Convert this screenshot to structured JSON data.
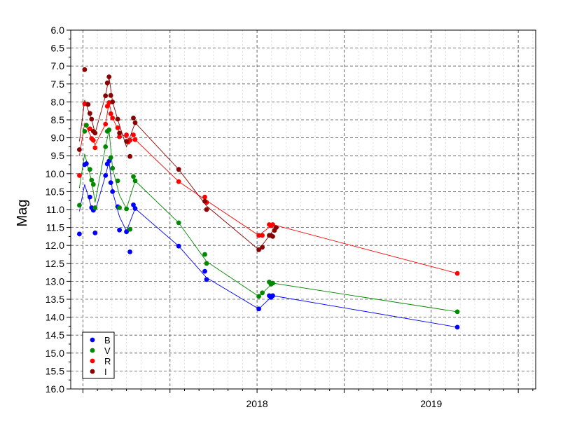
{
  "chart_data": {
    "type": "scatter",
    "ylabel": "Mag",
    "xlabel": "",
    "ylim": [
      6.0,
      16.0
    ],
    "y_inverted": true,
    "y_ticks": [
      "6.0",
      "6.5",
      "7.0",
      "7.5",
      "8.0",
      "8.5",
      "9.0",
      "9.5",
      "10.0",
      "10.5",
      "11.0",
      "11.5",
      "12.0",
      "12.5",
      "13.0",
      "13.5",
      "14.0",
      "14.5",
      "15.0",
      "15.5",
      "16.0"
    ],
    "xlim": [
      2016.93,
      2019.6
    ],
    "x_major_ticks": [
      2017.5,
      2018.0,
      2018.5,
      2019.0,
      2019.5
    ],
    "x_tick_labels": [
      {
        "x": 2018.0,
        "label": "2018"
      },
      {
        "x": 2019.0,
        "label": "2019"
      }
    ],
    "grid": true,
    "legend_position": "bottom-left",
    "series": [
      {
        "name": "B",
        "color": "#0000ff",
        "points": [
          [
            2016.98,
            11.68
          ],
          [
            2017.01,
            9.75
          ],
          [
            2017.02,
            9.72
          ],
          [
            2017.04,
            10.65
          ],
          [
            2017.05,
            10.95
          ],
          [
            2017.06,
            11.02
          ],
          [
            2017.07,
            11.65
          ],
          [
            2017.13,
            10.05
          ],
          [
            2017.14,
            9.73
          ],
          [
            2017.15,
            9.65
          ],
          [
            2017.16,
            10.25
          ],
          [
            2017.17,
            10.5
          ],
          [
            2017.2,
            10.92
          ],
          [
            2017.21,
            11.57
          ],
          [
            2017.25,
            11.62
          ],
          [
            2017.27,
            12.18
          ],
          [
            2017.29,
            10.87
          ],
          [
            2017.3,
            10.97
          ],
          [
            2017.55,
            12.02
          ],
          [
            2017.7,
            12.72
          ],
          [
            2017.71,
            12.95
          ],
          [
            2018.01,
            13.77
          ],
          [
            2018.07,
            13.4
          ],
          [
            2018.08,
            13.45
          ],
          [
            2018.09,
            13.4
          ],
          [
            2019.15,
            14.28
          ]
        ],
        "trend": [
          [
            2016.98,
            11.05
          ],
          [
            2017.01,
            10.3
          ],
          [
            2017.05,
            10.95
          ],
          [
            2017.07,
            11.05
          ],
          [
            2017.13,
            10.05
          ],
          [
            2017.15,
            9.65
          ],
          [
            2017.17,
            10.5
          ],
          [
            2017.21,
            11.2
          ],
          [
            2017.25,
            11.6
          ],
          [
            2017.3,
            10.97
          ],
          [
            2017.55,
            12.02
          ],
          [
            2017.71,
            12.9
          ],
          [
            2018.01,
            13.77
          ],
          [
            2018.09,
            13.4
          ],
          [
            2019.15,
            14.28
          ]
        ]
      },
      {
        "name": "V",
        "color": "#008800",
        "points": [
          [
            2016.98,
            10.88
          ],
          [
            2017.01,
            8.82
          ],
          [
            2017.02,
            8.65
          ],
          [
            2017.04,
            9.88
          ],
          [
            2017.05,
            10.18
          ],
          [
            2017.06,
            10.3
          ],
          [
            2017.07,
            10.95
          ],
          [
            2017.13,
            9.25
          ],
          [
            2017.14,
            8.82
          ],
          [
            2017.15,
            8.78
          ],
          [
            2017.16,
            9.55
          ],
          [
            2017.17,
            9.85
          ],
          [
            2017.2,
            10.2
          ],
          [
            2017.21,
            10.95
          ],
          [
            2017.25,
            10.98
          ],
          [
            2017.27,
            11.55
          ],
          [
            2017.29,
            10.08
          ],
          [
            2017.3,
            10.2
          ],
          [
            2017.55,
            11.37
          ],
          [
            2017.7,
            12.25
          ],
          [
            2017.71,
            12.5
          ],
          [
            2018.01,
            13.42
          ],
          [
            2018.03,
            13.32
          ],
          [
            2018.07,
            13.02
          ],
          [
            2018.08,
            13.08
          ],
          [
            2018.09,
            13.05
          ],
          [
            2019.15,
            13.85
          ]
        ],
        "trend": [
          [
            2016.98,
            10.4
          ],
          [
            2017.01,
            9.45
          ],
          [
            2017.05,
            10.2
          ],
          [
            2017.07,
            10.8
          ],
          [
            2017.13,
            9.25
          ],
          [
            2017.15,
            8.78
          ],
          [
            2017.17,
            9.85
          ],
          [
            2017.21,
            10.6
          ],
          [
            2017.25,
            10.98
          ],
          [
            2017.3,
            10.2
          ],
          [
            2017.55,
            11.37
          ],
          [
            2017.71,
            12.45
          ],
          [
            2018.01,
            13.42
          ],
          [
            2018.09,
            13.05
          ],
          [
            2019.15,
            13.85
          ]
        ]
      },
      {
        "name": "R",
        "color": "#ff0000",
        "points": [
          [
            2016.98,
            10.05
          ],
          [
            2017.01,
            8.05
          ],
          [
            2017.04,
            8.75
          ],
          [
            2017.05,
            9.02
          ],
          [
            2017.06,
            9.07
          ],
          [
            2017.07,
            9.28
          ],
          [
            2017.13,
            8.62
          ],
          [
            2017.14,
            8.12
          ],
          [
            2017.15,
            8.02
          ],
          [
            2017.16,
            8.33
          ],
          [
            2017.17,
            8.45
          ],
          [
            2017.2,
            8.72
          ],
          [
            2017.21,
            8.97
          ],
          [
            2017.25,
            8.92
          ],
          [
            2017.26,
            9.12
          ],
          [
            2017.27,
            9.07
          ],
          [
            2017.29,
            8.92
          ],
          [
            2017.3,
            9.05
          ],
          [
            2017.55,
            10.22
          ],
          [
            2017.7,
            10.65
          ],
          [
            2017.71,
            10.8
          ],
          [
            2018.01,
            11.72
          ],
          [
            2018.03,
            11.72
          ],
          [
            2018.07,
            11.42
          ],
          [
            2018.08,
            11.45
          ],
          [
            2018.09,
            11.42
          ],
          [
            2019.15,
            12.78
          ]
        ],
        "trend": [
          [
            2016.98,
            9.5
          ],
          [
            2017.01,
            8.6
          ],
          [
            2017.05,
            9.0
          ],
          [
            2017.07,
            9.2
          ],
          [
            2017.13,
            8.62
          ],
          [
            2017.15,
            8.02
          ],
          [
            2017.17,
            8.45
          ],
          [
            2017.21,
            8.85
          ],
          [
            2017.25,
            9.0
          ],
          [
            2017.3,
            9.05
          ],
          [
            2017.55,
            10.22
          ],
          [
            2017.71,
            10.75
          ],
          [
            2018.01,
            11.72
          ],
          [
            2018.09,
            11.42
          ],
          [
            2019.15,
            12.78
          ]
        ]
      },
      {
        "name": "I",
        "color": "#880000",
        "points": [
          [
            2016.98,
            9.33
          ],
          [
            2017.01,
            7.1
          ],
          [
            2017.03,
            8.07
          ],
          [
            2017.04,
            8.32
          ],
          [
            2017.05,
            8.48
          ],
          [
            2017.06,
            8.82
          ],
          [
            2017.07,
            8.87
          ],
          [
            2017.13,
            7.83
          ],
          [
            2017.14,
            7.47
          ],
          [
            2017.15,
            7.3
          ],
          [
            2017.16,
            7.82
          ],
          [
            2017.17,
            8.0
          ],
          [
            2017.2,
            8.48
          ],
          [
            2017.21,
            8.87
          ],
          [
            2017.25,
            9.1
          ],
          [
            2017.27,
            9.52
          ],
          [
            2017.29,
            8.45
          ],
          [
            2017.3,
            8.58
          ],
          [
            2017.55,
            9.88
          ],
          [
            2017.7,
            10.77
          ],
          [
            2017.71,
            11.0
          ],
          [
            2018.01,
            12.12
          ],
          [
            2018.03,
            12.05
          ],
          [
            2018.07,
            11.72
          ],
          [
            2018.08,
            11.72
          ],
          [
            2018.09,
            11.75
          ],
          [
            2018.1,
            11.58
          ],
          [
            2018.11,
            11.5
          ]
        ],
        "trend": [
          [
            2016.98,
            9.1
          ],
          [
            2017.01,
            7.95
          ],
          [
            2017.05,
            8.5
          ],
          [
            2017.07,
            8.87
          ],
          [
            2017.13,
            7.83
          ],
          [
            2017.15,
            7.3
          ],
          [
            2017.17,
            8.0
          ],
          [
            2017.21,
            8.65
          ],
          [
            2017.25,
            9.25
          ],
          [
            2017.3,
            8.58
          ],
          [
            2017.55,
            9.88
          ],
          [
            2017.71,
            10.9
          ],
          [
            2018.01,
            12.12
          ],
          [
            2018.09,
            11.6
          ],
          [
            2018.11,
            11.5
          ]
        ]
      }
    ]
  }
}
